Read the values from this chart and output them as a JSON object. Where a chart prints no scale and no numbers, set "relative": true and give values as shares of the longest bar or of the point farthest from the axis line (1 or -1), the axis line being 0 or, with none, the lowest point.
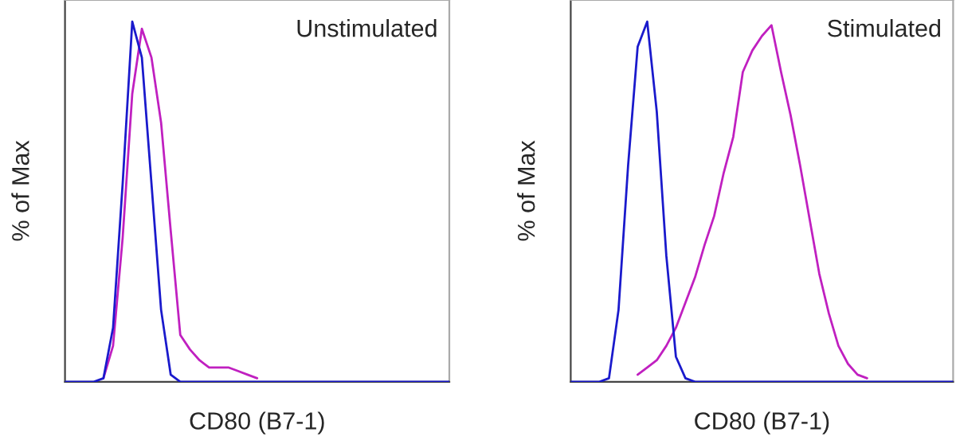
{
  "chart_data": [
    {
      "type": "line",
      "relative": true,
      "ylabel": "% of Max",
      "xlabel": "CD80 (B7-1)",
      "annotations": [
        "Unstimulated"
      ],
      "categories": [
        null,
        null,
        null,
        null,
        null,
        null,
        null,
        null,
        null,
        null,
        null,
        null,
        null,
        null,
        null,
        null,
        null,
        null,
        null,
        null,
        null,
        null,
        null,
        null,
        null,
        null,
        null,
        null,
        null,
        null,
        null,
        null,
        null,
        null,
        null,
        null,
        null,
        null,
        null,
        null,
        null
      ],
      "series": [
        {
          "color": "#c020c0",
          "values": [
            null,
            null,
            null,
            null,
            0.01,
            0.1,
            0.4,
            0.8,
            0.98,
            0.9,
            0.72,
            0.42,
            0.13,
            0.09,
            0.06,
            0.04,
            0.04,
            0.04,
            0.03,
            0.02,
            0.01,
            null,
            null,
            null,
            null,
            null,
            null,
            null,
            null,
            null,
            null,
            null,
            null,
            null,
            null,
            null,
            null,
            null,
            null,
            null,
            null
          ]
        },
        {
          "color": "#1a1acc",
          "values": [
            0,
            0,
            0,
            0,
            0.01,
            0.15,
            0.55,
            1.0,
            0.9,
            0.55,
            0.2,
            0.02,
            0,
            0,
            0,
            0,
            0,
            0,
            0,
            0,
            0,
            0,
            0,
            0,
            0,
            0,
            0,
            0,
            0,
            0,
            0,
            0,
            0,
            0,
            0,
            0,
            0,
            0,
            0,
            0,
            0
          ]
        }
      ]
    },
    {
      "type": "line",
      "relative": true,
      "ylabel": "% of Max",
      "xlabel": "CD80 (B7-1)",
      "annotations": [
        "Stimulated"
      ],
      "categories": [
        null,
        null,
        null,
        null,
        null,
        null,
        null,
        null,
        null,
        null,
        null,
        null,
        null,
        null,
        null,
        null,
        null,
        null,
        null,
        null,
        null,
        null,
        null,
        null,
        null,
        null,
        null,
        null,
        null,
        null,
        null,
        null,
        null,
        null,
        null,
        null,
        null,
        null,
        null,
        null,
        null
      ],
      "series": [
        {
          "color": "#c020c0",
          "values": [
            null,
            null,
            null,
            null,
            null,
            null,
            null,
            0.02,
            0.04,
            0.06,
            0.1,
            0.15,
            0.22,
            0.29,
            0.38,
            0.46,
            0.58,
            0.68,
            0.86,
            0.92,
            0.96,
            0.99,
            0.86,
            0.74,
            0.6,
            0.45,
            0.3,
            0.19,
            0.1,
            0.05,
            0.02,
            0.01,
            null,
            null,
            null,
            null,
            null,
            null,
            null,
            null,
            null
          ]
        },
        {
          "color": "#1a1acc",
          "values": [
            0,
            0,
            0,
            0,
            0.01,
            0.2,
            0.6,
            0.93,
            1.0,
            0.75,
            0.35,
            0.07,
            0.01,
            0,
            0,
            0,
            0,
            0,
            0,
            0,
            0,
            0,
            0,
            0,
            0,
            0,
            0,
            0,
            0,
            0,
            0,
            0,
            0,
            0,
            0,
            0,
            0,
            0,
            0,
            0,
            0
          ]
        }
      ]
    }
  ]
}
